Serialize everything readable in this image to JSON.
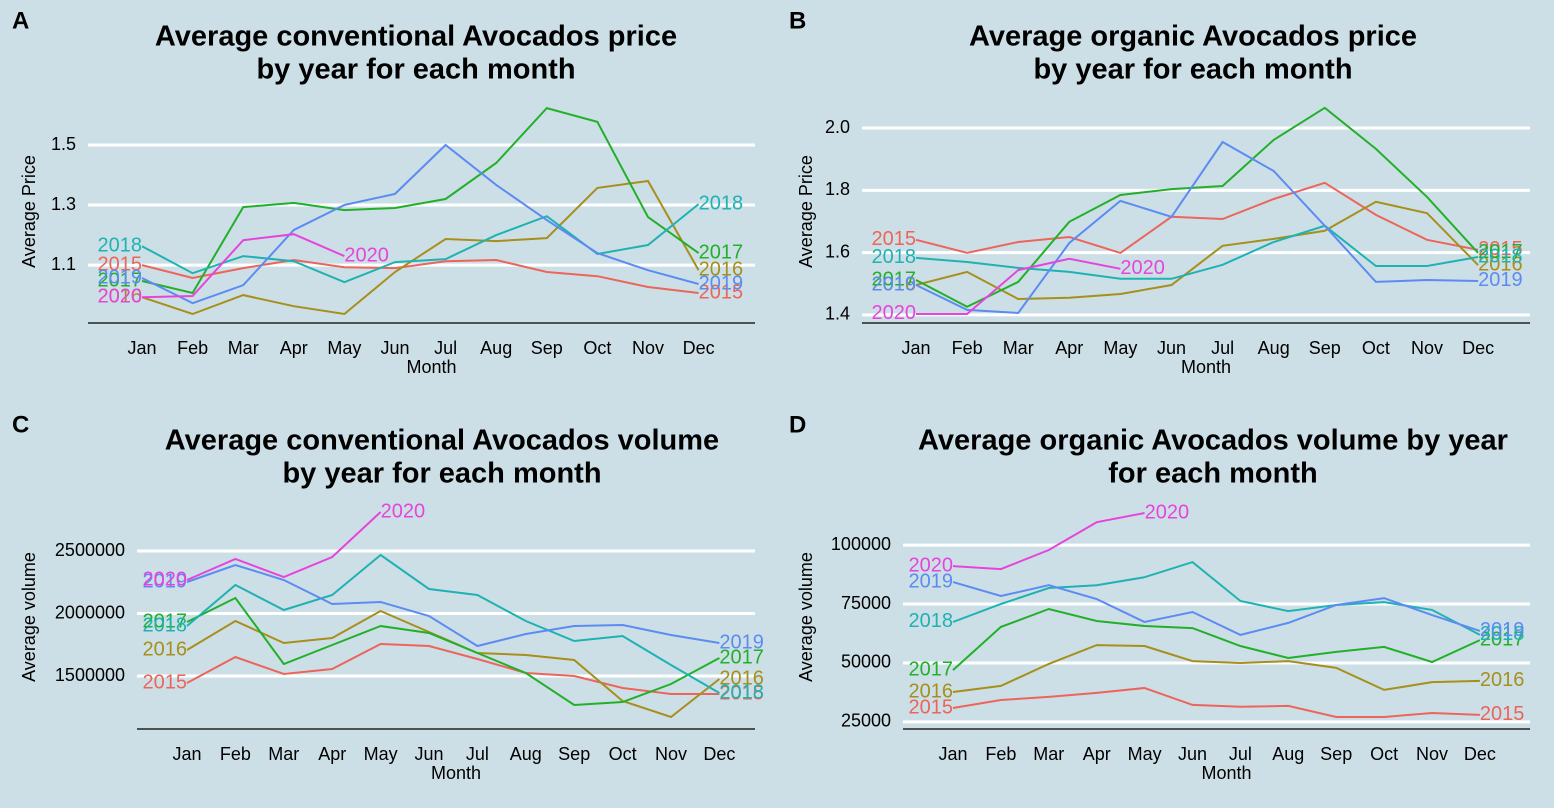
{
  "chart_data": [
    {
      "type": "line",
      "panel_label": "A",
      "title": [
        "Average conventional Avocados price",
        "by year for each month"
      ],
      "x_label": "Month",
      "y_label": "Average Price",
      "categories": [
        "Jan",
        "Feb",
        "Mar",
        "Apr",
        "May",
        "Jun",
        "Jul",
        "Aug",
        "Sep",
        "Oct",
        "Nov",
        "Dec"
      ],
      "ylim": [
        0.907,
        1.65
      ],
      "yticks": [
        1.1,
        1.3,
        1.5
      ],
      "grid": true,
      "series": [
        {
          "name": "2015",
          "color": "#ec655b",
          "values": [
            1.1,
            1.057,
            1.09,
            1.117,
            1.093,
            1.09,
            1.113,
            1.117,
            1.077,
            1.063,
            1.027,
            1.007
          ]
        },
        {
          "name": "2016",
          "color": "#a68f1c",
          "values": [
            0.993,
            0.937,
            1.0,
            0.963,
            0.937,
            1.077,
            1.187,
            1.18,
            1.19,
            1.357,
            1.38,
            1.083
          ]
        },
        {
          "name": "2017",
          "color": "#22b02a",
          "values": [
            1.047,
            1.007,
            1.293,
            1.307,
            1.283,
            1.29,
            1.32,
            1.44,
            1.623,
            1.577,
            1.26,
            1.14
          ]
        },
        {
          "name": "2018",
          "color": "#1fb2b2",
          "values": [
            1.163,
            1.073,
            1.13,
            1.113,
            1.043,
            1.11,
            1.12,
            1.2,
            1.263,
            1.137,
            1.167,
            1.303
          ]
        },
        {
          "name": "2019",
          "color": "#5c8bf2",
          "values": [
            1.057,
            0.973,
            1.033,
            1.217,
            1.3,
            1.337,
            1.5,
            1.367,
            1.25,
            1.14,
            1.083,
            1.037
          ]
        },
        {
          "name": "2020",
          "color": "#e645dc",
          "values": [
            0.993,
            0.997,
            1.183,
            1.203,
            1.13,
            null,
            null,
            null,
            null,
            null,
            null,
            null
          ]
        }
      ]
    },
    {
      "type": "line",
      "panel_label": "B",
      "title": [
        "Average organic Avocados price",
        "by year for each month"
      ],
      "x_label": "Month",
      "y_label": "Average Price",
      "categories": [
        "Jan",
        "Feb",
        "Mar",
        "Apr",
        "May",
        "Jun",
        "Jul",
        "Aug",
        "Sep",
        "Oct",
        "Nov",
        "Dec"
      ],
      "ylim": [
        1.374,
        2.09
      ],
      "yticks": [
        1.4,
        1.6,
        1.8,
        {
          "value": 2.0,
          "label": "2.0"
        }
      ],
      "grid": true,
      "series": [
        {
          "name": "2015",
          "color": "#ec655b",
          "values": [
            1.641,
            1.599,
            1.634,
            1.65,
            1.599,
            1.715,
            1.708,
            1.772,
            1.824,
            1.721,
            1.641,
            1.609
          ]
        },
        {
          "name": "2016",
          "color": "#a68f1c",
          "values": [
            1.496,
            1.538,
            1.451,
            1.455,
            1.467,
            1.496,
            1.622,
            1.644,
            1.67,
            1.763,
            1.727,
            1.56
          ]
        },
        {
          "name": "2017",
          "color": "#22b02a",
          "values": [
            1.512,
            1.426,
            1.506,
            1.699,
            1.785,
            1.804,
            1.814,
            1.962,
            2.065,
            1.933,
            1.779,
            1.599
          ]
        },
        {
          "name": "2018",
          "color": "#1fb2b2",
          "values": [
            1.583,
            1.57,
            1.551,
            1.538,
            1.516,
            1.516,
            1.561,
            1.634,
            1.686,
            1.557,
            1.557,
            1.586
          ]
        },
        {
          "name": "2019",
          "color": "#5c8bf2",
          "values": [
            1.496,
            1.416,
            1.406,
            1.631,
            1.766,
            1.715,
            1.955,
            1.862,
            1.686,
            1.506,
            1.512,
            1.509
          ]
        },
        {
          "name": "2020",
          "color": "#e645dc",
          "values": [
            1.403,
            1.403,
            1.544,
            1.58,
            1.548,
            null,
            null,
            null,
            null,
            null,
            null,
            null
          ]
        }
      ]
    },
    {
      "type": "line",
      "panel_label": "C",
      "title": [
        "Average conventional Avocados volume",
        "by year for each month"
      ],
      "x_label": "Month",
      "y_label": "Average volume",
      "categories": [
        "Jan",
        "Feb",
        "Mar",
        "Apr",
        "May",
        "Jun",
        "Jul",
        "Aug",
        "Sep",
        "Oct",
        "Nov",
        "Dec"
      ],
      "ylim": [
        1076000,
        2868000
      ],
      "yticks": [
        1500000,
        2000000,
        2500000
      ],
      "grid": true,
      "series": [
        {
          "name": "2015",
          "color": "#ec655b",
          "values": [
            1444000,
            1652000,
            1516000,
            1556000,
            1756000,
            1740000,
            1636000,
            1524000,
            1500000,
            1404000,
            1356000,
            1356000
          ]
        },
        {
          "name": "2016",
          "color": "#a68f1c",
          "values": [
            1708000,
            1940000,
            1764000,
            1804000,
            2020000,
            1852000,
            1684000,
            1668000,
            1628000,
            1300000,
            1172000,
            1476000
          ]
        },
        {
          "name": "2017",
          "color": "#22b02a",
          "values": [
            1932000,
            2124000,
            1596000,
            1748000,
            1900000,
            1844000,
            1684000,
            1524000,
            1268000,
            1292000,
            1436000,
            1644000
          ]
        },
        {
          "name": "2018",
          "color": "#1fb2b2",
          "values": [
            1900000,
            2228000,
            2028000,
            2148000,
            2468000,
            2196000,
            2148000,
            1940000,
            1780000,
            1820000,
            1588000,
            1364000
          ]
        },
        {
          "name": "2019",
          "color": "#5c8bf2",
          "values": [
            2252000,
            2388000,
            2268000,
            2076000,
            2092000,
            1980000,
            1740000,
            1836000,
            1900000,
            1908000,
            1828000,
            1764000
          ]
        },
        {
          "name": "2020",
          "color": "#e645dc",
          "values": [
            2268000,
            2436000,
            2292000,
            2452000,
            2812000,
            null,
            null,
            null,
            null,
            null,
            null,
            null
          ]
        }
      ]
    },
    {
      "type": "line",
      "panel_label": "D",
      "title": [
        "Average organic Avocados volume by year",
        "for each month"
      ],
      "x_label": "Month",
      "y_label": "Average volume",
      "categories": [
        "Jan",
        "Feb",
        "Mar",
        "Apr",
        "May",
        "Jun",
        "Jul",
        "Aug",
        "Sep",
        "Oct",
        "Nov",
        "Dec"
      ],
      "ylim": [
        22000,
        117000
      ],
      "yticks": [
        25000,
        50000,
        75000,
        100000
      ],
      "grid": true,
      "series": [
        {
          "name": "2015",
          "color": "#ec655b",
          "values": [
            30900,
            34300,
            35600,
            37300,
            39400,
            32200,
            31400,
            31800,
            27100,
            27100,
            28800,
            28000
          ]
        },
        {
          "name": "2016",
          "color": "#a68f1c",
          "values": [
            37700,
            40300,
            49600,
            57600,
            57200,
            50800,
            50000,
            50800,
            47900,
            38600,
            41900,
            42400
          ]
        },
        {
          "name": "2017",
          "color": "#22b02a",
          "values": [
            47000,
            65300,
            72900,
            67800,
            65700,
            64800,
            57200,
            52100,
            54700,
            56800,
            50400,
            59700
          ]
        },
        {
          "name": "2018",
          "color": "#1fb2b2",
          "values": [
            67400,
            75000,
            81800,
            83000,
            86400,
            92800,
            76300,
            72000,
            74600,
            75800,
            72500,
            61900
          ]
        },
        {
          "name": "2019",
          "color": "#5c8bf2",
          "values": [
            84300,
            78400,
            83000,
            77100,
            67400,
            71600,
            61900,
            67000,
            74600,
            77500,
            70300,
            63600
          ]
        },
        {
          "name": "2020",
          "color": "#e645dc",
          "values": [
            91100,
            89800,
            97900,
            109700,
            113600,
            null,
            null,
            null,
            null,
            null,
            null,
            null
          ]
        }
      ]
    }
  ]
}
